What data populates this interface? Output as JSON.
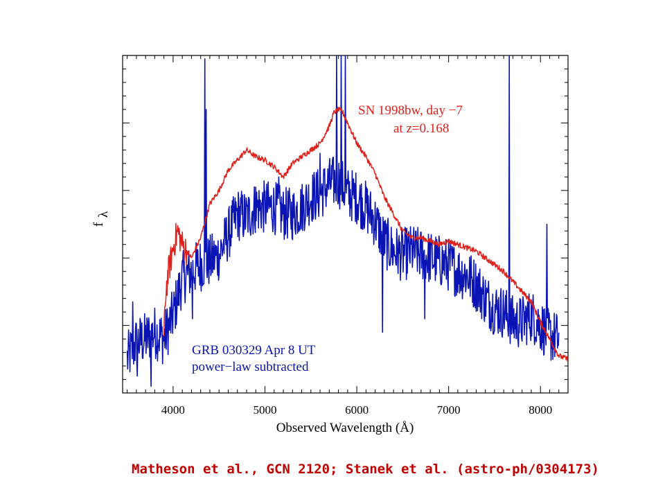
{
  "chart_data": {
    "type": "line",
    "xlabel": "Observed Wavelength (Å)",
    "ylabel_main": "f",
    "ylabel_sub": "λ",
    "xlim": [
      3450,
      8300
    ],
    "ylim": [
      0,
      10
    ],
    "x_ticks": [
      4000,
      5000,
      6000,
      7000,
      8000
    ],
    "x_tick_labels": [
      "4000",
      "5000",
      "6000",
      "7000",
      "8000"
    ],
    "grid": false,
    "series": [
      {
        "name": "SN 1998bw, day −7 at z=0.168",
        "color": "#e0201a",
        "x": [
          3900,
          3920,
          3950,
          3980,
          4000,
          4050,
          4100,
          4200,
          4300,
          4400,
          4500,
          4600,
          4700,
          4800,
          4900,
          5000,
          5100,
          5200,
          5300,
          5400,
          5500,
          5600,
          5700,
          5750,
          5800,
          5850,
          5900,
          6000,
          6100,
          6200,
          6300,
          6400,
          6500,
          6600,
          6700,
          6800,
          6900,
          7000,
          7100,
          7200,
          7300,
          7400,
          7500,
          7600,
          7700,
          7800,
          7900,
          8000,
          8100,
          8200,
          8300
        ],
        "y": [
          1.6,
          3.0,
          3.6,
          4.0,
          4.3,
          4.8,
          4.4,
          4.0,
          4.6,
          5.6,
          6.0,
          6.6,
          6.9,
          7.2,
          7.0,
          6.9,
          6.7,
          6.4,
          6.8,
          7.0,
          7.2,
          7.4,
          7.9,
          8.3,
          8.4,
          8.3,
          8.0,
          7.4,
          7.0,
          6.5,
          5.8,
          5.3,
          4.8,
          4.6,
          4.6,
          4.5,
          4.4,
          4.5,
          4.4,
          4.3,
          4.2,
          4.0,
          3.8,
          3.6,
          3.3,
          3.0,
          2.7,
          2.1,
          1.6,
          1.1,
          1.0
        ]
      },
      {
        "name": "GRB 030329 Apr 8 UT power−law subtracted",
        "color": "#0a14b4",
        "x": [
          3500,
          3600,
          3700,
          3800,
          3900,
          4000,
          4100,
          4200,
          4300,
          4400,
          4500,
          4600,
          4700,
          4800,
          4900,
          5000,
          5100,
          5200,
          5300,
          5400,
          5500,
          5600,
          5700,
          5800,
          5900,
          6000,
          6100,
          6200,
          6300,
          6400,
          6500,
          6600,
          6700,
          6800,
          6900,
          7000,
          7100,
          7200,
          7300,
          7400,
          7500,
          7600,
          7700,
          7800,
          7900,
          8000,
          8100,
          8200
        ],
        "y": [
          1.0,
          1.5,
          1.6,
          1.8,
          1.6,
          2.3,
          3.4,
          3.6,
          3.8,
          3.9,
          4.1,
          4.7,
          5.3,
          5.2,
          5.5,
          5.5,
          5.5,
          5.3,
          5.3,
          5.5,
          5.8,
          5.9,
          6.2,
          6.3,
          5.9,
          5.8,
          5.5,
          5.1,
          4.5,
          4.2,
          4.1,
          4.2,
          4.1,
          4.0,
          3.9,
          3.8,
          3.6,
          3.5,
          3.2,
          2.8,
          2.5,
          2.4,
          2.1,
          2.1,
          2.3,
          2.0,
          1.7,
          1.6
        ],
        "spikes": [
          {
            "x": 3560,
            "y": 2.7
          },
          {
            "x": 3610,
            "y": 0.5
          },
          {
            "x": 3760,
            "y": 0.2
          },
          {
            "x": 4210,
            "y": 2.2
          },
          {
            "x": 4345,
            "y": 9.9
          },
          {
            "x": 4360,
            "y": 8.4
          },
          {
            "x": 4900,
            "y": 6.1
          },
          {
            "x": 5150,
            "y": 6.4
          },
          {
            "x": 5600,
            "y": 7.1
          },
          {
            "x": 5780,
            "y": 10.0
          },
          {
            "x": 5830,
            "y": 10.0
          },
          {
            "x": 5875,
            "y": 10.0
          },
          {
            "x": 6280,
            "y": 1.8
          },
          {
            "x": 6740,
            "y": 2.2
          },
          {
            "x": 7660,
            "y": 10.0
          },
          {
            "x": 8070,
            "y": 5.0
          }
        ]
      }
    ],
    "annotations": {
      "sn_line1": "SN 1998bw, day −7",
      "sn_line2": "at z=0.168",
      "grb_line1": "GRB 030329 Apr 8 UT",
      "grb_line2": "power−law subtracted"
    }
  },
  "citation": "Matheson et al., GCN 2120;  Stanek et al. (astro-ph/0304173)",
  "colors": {
    "sn": "#e0201a",
    "grb": "#0a14b4",
    "citation": "#c00000"
  }
}
